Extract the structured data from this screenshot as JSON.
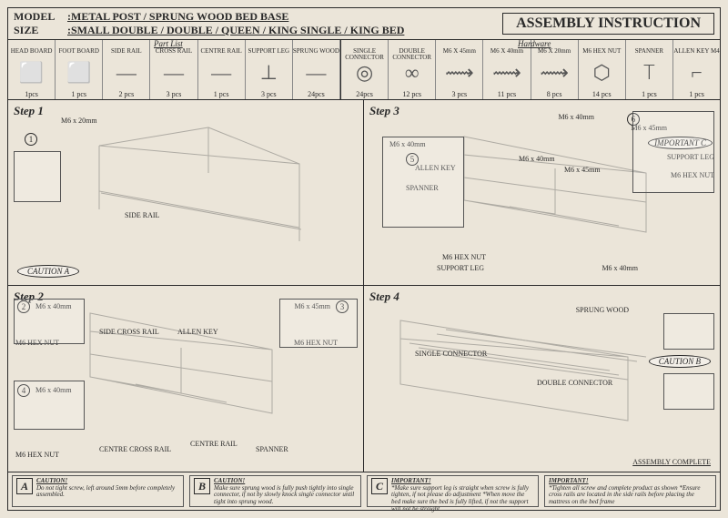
{
  "header": {
    "model_label": "MODEL",
    "model_value": ":METAL POST / SPRUNG WOOD BED BASE",
    "size_label": "SIZE",
    "size_value": ":SMALL DOUBLE / DOUBLE / QUEEN / KING SINGLE / KING BED",
    "title": "ASSEMBLY INSTRUCTION"
  },
  "parts": {
    "section_a_label": "Part List",
    "section_b_label": "Hardware",
    "items": [
      {
        "name": "HEAD BOARD",
        "qty": "1pcs",
        "glyph": "⬜"
      },
      {
        "name": "FOOT BOARD",
        "qty": "1 pcs",
        "glyph": "⬜"
      },
      {
        "name": "SIDE RAIL",
        "qty": "2 pcs",
        "glyph": "—"
      },
      {
        "name": "CROSS RAIL",
        "qty": "3 pcs",
        "glyph": "—"
      },
      {
        "name": "CENTRE RAIL",
        "qty": "1 pcs",
        "glyph": "—"
      },
      {
        "name": "SUPPORT LEG",
        "qty": "3 pcs",
        "glyph": "⊥"
      },
      {
        "name": "SPRUNG WOOD",
        "qty": "24pcs",
        "glyph": "—"
      },
      {
        "name": "SINGLE CONNECTOR",
        "qty": "24pcs",
        "glyph": "◎"
      },
      {
        "name": "DOUBLE CONNECTOR",
        "qty": "12 pcs",
        "glyph": "∞"
      },
      {
        "name": "M6 X 45mm",
        "qty": "3 pcs",
        "glyph": "⟿"
      },
      {
        "name": "M6 X 40mm",
        "qty": "11 pcs",
        "glyph": "⟿"
      },
      {
        "name": "M6 X 20mm",
        "qty": "8 pcs",
        "glyph": "⟿"
      },
      {
        "name": "M6 HEX NUT",
        "qty": "14 pcs",
        "glyph": "⬡"
      },
      {
        "name": "SPANNER",
        "qty": "1 pcs",
        "glyph": "⟙"
      },
      {
        "name": "ALLEN KEY M4",
        "qty": "1 pcs",
        "glyph": "⌐"
      }
    ]
  },
  "steps": {
    "s1": {
      "title": "Step 1",
      "labels": {
        "bolt": "M6 x 20mm",
        "rail": "SIDE RAIL",
        "caution": "CAUTION A",
        "n1": "1"
      }
    },
    "s2": {
      "title": "Step 2",
      "labels": {
        "bolt_a": "M6 x 40mm",
        "bolt_b": "M6 x 45mm",
        "bolt_c": "M6 x 40mm",
        "nut": "M6 HEX NUT",
        "nut_b": "M6 HEX NUT",
        "nut_c": "M6 HEX NUT",
        "side_cross": "SIDE CROSS RAIL",
        "centre_cross": "CENTRE CROSS RAIL",
        "centre_rail": "CENTRE RAIL",
        "allen": "ALLEN KEY",
        "spanner": "SPANNER",
        "n2": "2",
        "n3": "3",
        "n4": "4"
      }
    },
    "s3": {
      "title": "Step 3",
      "labels": {
        "b40a": "M6 x 40mm",
        "b40b": "M6 x 40mm",
        "b40c": "M6 x 40mm",
        "b40d": "M6 x 40mm",
        "b45a": "M6 x 45mm",
        "b45b": "M6 x 45mm",
        "nut": "M6 HEX NUT",
        "nut_b": "M6 HEX NUT",
        "support": "SUPPORT LEG",
        "support_b": "SUPPORT LEG",
        "allen": "ALLEN KEY",
        "spanner": "SPANNER",
        "important": "IMPORTANT C",
        "n5": "5",
        "n6": "6"
      }
    },
    "s4": {
      "title": "Step 4",
      "labels": {
        "sprung": "SPRUNG WOOD",
        "single": "SINGLE CONNECTOR",
        "double": "DOUBLE CONNECTOR",
        "caution": "CAUTION B",
        "complete": "ASSEMBLY COMPLETE"
      }
    }
  },
  "footer": {
    "a": {
      "letter": "A",
      "title": "CAUTION!",
      "text": "Do not tight screw, left around 5mm before completely assembled."
    },
    "b": {
      "letter": "B",
      "title": "CAUTION!",
      "text": "Make sure sprung wood is fully push tightly into single connector, if not by slowly knock single connector until tight into sprung wood."
    },
    "c": {
      "letter": "C",
      "title": "IMPORTANT!",
      "text": "*Make sure support leg is straight when screw is fully tighten, if not please do adjustment *When move the bed make sure the bed is fully lifted, if not the support will not be straight"
    },
    "d": {
      "title": "IMPORTANT!",
      "text": "*Tighten all screw and complete product as shown *Ensure cross rails are located in the side rails before placing the mattress on the bed frame"
    }
  },
  "colors": {
    "line": "#2a2a2a",
    "bg": "#ebe5d9"
  }
}
